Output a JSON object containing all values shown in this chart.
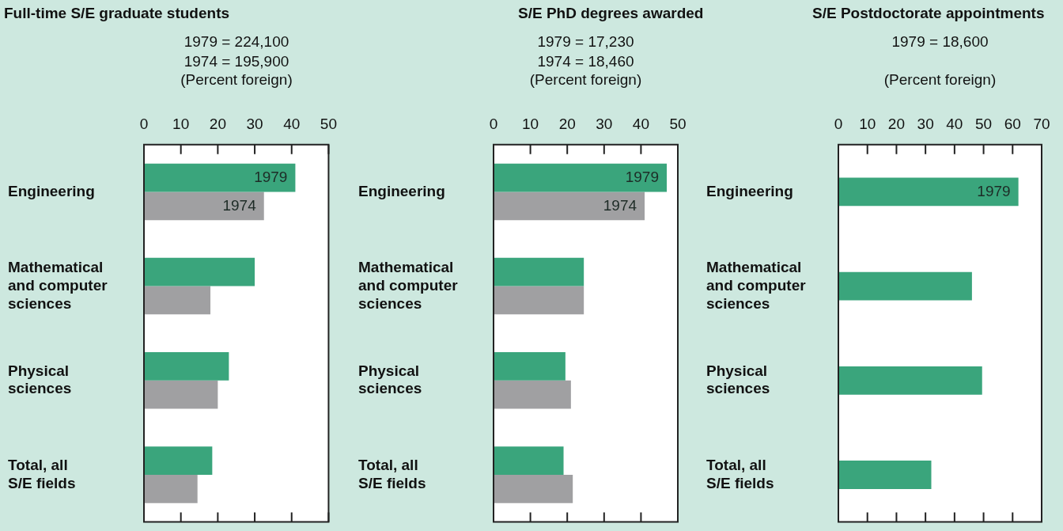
{
  "chart_data": [
    {
      "type": "bar",
      "orientation": "horizontal",
      "title": "Full-time S/E graduate students",
      "subtitle": "1979 = 224,100\n1974 = 195,900",
      "xlabel": "(Percent foreign)",
      "categories": [
        "Engineering",
        "Mathematical\nand computer\nsciences",
        "Physical\nsciences",
        "Total, all\nS/E fields"
      ],
      "series": [
        {
          "name": "1979",
          "color": "#3aa57c",
          "values": [
            41,
            30,
            23,
            18.5
          ]
        },
        {
          "name": "1974",
          "color": "#a0a0a2",
          "values": [
            32.5,
            18,
            20,
            14.5
          ]
        }
      ],
      "xlim": [
        0,
        50
      ],
      "xticks": [
        0,
        10,
        20,
        30,
        40,
        50
      ],
      "legend": false
    },
    {
      "type": "bar",
      "orientation": "horizontal",
      "title": "S/E PhD degrees awarded",
      "subtitle": "1979 = 17,230\n1974 = 18,460",
      "xlabel": "(Percent foreign)",
      "categories": [
        "Engineering",
        "Mathematical\nand computer\nsciences",
        "Physical\nsciences",
        "Total, all\nS/E fields"
      ],
      "series": [
        {
          "name": "1979",
          "color": "#3aa57c",
          "values": [
            47,
            24.5,
            19.5,
            19
          ]
        },
        {
          "name": "1974",
          "color": "#a0a0a2",
          "values": [
            41,
            24.5,
            21,
            21.5
          ]
        }
      ],
      "xlim": [
        0,
        50
      ],
      "xticks": [
        0,
        10,
        20,
        30,
        40,
        50
      ],
      "legend": false
    },
    {
      "type": "bar",
      "orientation": "horizontal",
      "title": "S/E Postdoctorate appointments",
      "subtitle": "1979 = 18,600",
      "xlabel": "(Percent foreign)",
      "categories": [
        "Engineering",
        "Mathematical\nand computer\nsciences",
        "Physical\nsciences",
        "Total, all\nS/E fields"
      ],
      "series": [
        {
          "name": "1979",
          "color": "#3aa57c",
          "values": [
            62,
            46,
            49.5,
            32
          ]
        }
      ],
      "xlim": [
        0,
        70
      ],
      "xticks": [
        0,
        10,
        20,
        30,
        40,
        50,
        60,
        70
      ],
      "legend": false
    }
  ]
}
